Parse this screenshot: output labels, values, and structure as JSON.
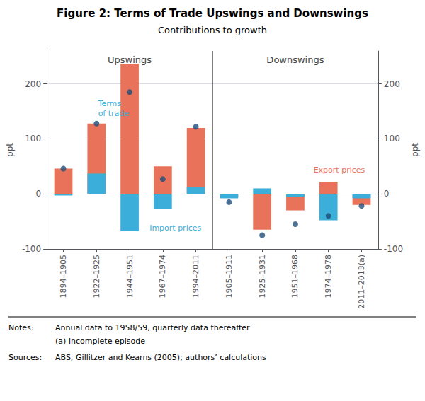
{
  "chart_data": {
    "type": "bar",
    "title": "Figure 2: Terms of Trade Upswings and Downswings",
    "subtitle": "Contributions to growth",
    "ylabel": "ppt",
    "ylim": [
      -100,
      260
    ],
    "yticks": [
      -100,
      0,
      100,
      200
    ],
    "y2label": "ppt",
    "y2lim": [
      -100,
      260
    ],
    "y2ticks": [
      -100,
      0,
      100,
      200
    ],
    "grid": true,
    "categories": [
      "1894–1905",
      "1922–1925",
      "1944–1951",
      "1967–1974",
      "1994–2011",
      "1905–1911",
      "1925–1931",
      "1951–1968",
      "1974–1978",
      "2011–2013(a)"
    ],
    "series": [
      {
        "name": "Export prices",
        "type": "bar",
        "color": "#E8735A",
        "values": [
          46,
          128,
          237,
          50,
          120,
          -5,
          -65,
          -30,
          22,
          -20
        ]
      },
      {
        "name": "Import prices",
        "type": "bar",
        "color": "#3BAFD9",
        "values": [
          -3,
          37,
          -68,
          -28,
          13,
          -8,
          10,
          -5,
          -48,
          -8
        ]
      },
      {
        "name": "Terms of trade",
        "type": "scatter",
        "marker": "circle",
        "color": "#1F4E79",
        "values": [
          46,
          128,
          185,
          27,
          122,
          -15,
          -75,
          -55,
          -40,
          -22
        ]
      }
    ],
    "annotations": [
      "Upswings",
      "Downswings",
      "Notes:",
      "Annual data to 1958/59, quarterly data thereafter",
      "(a) Incomplete episode",
      "Sources:",
      "ABS; Gillitzer and Kearns (2005); authors’ calculations"
    ]
  }
}
